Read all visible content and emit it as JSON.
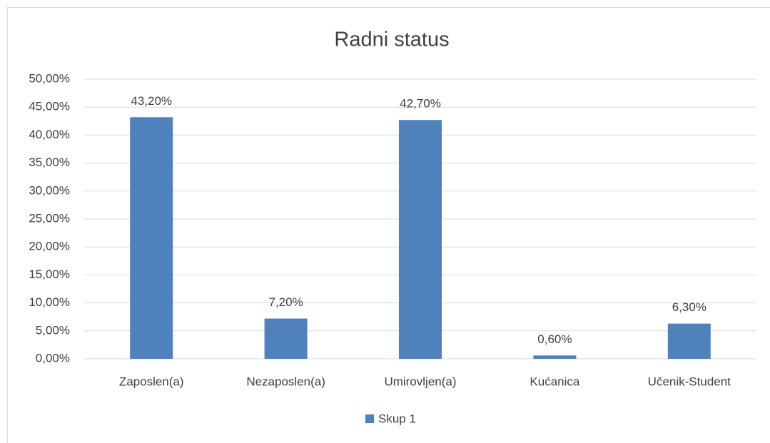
{
  "chart_data": {
    "type": "bar",
    "title": "Radni status",
    "categories": [
      "Zaposlen(a)",
      "Nezaposlen(a)",
      "Umirovljen(a)",
      "Kućanica",
      "Učenik-Student"
    ],
    "series": [
      {
        "name": "Skup 1",
        "color": "#4f81bd",
        "values": [
          43.2,
          7.2,
          42.7,
          0.6,
          6.3
        ],
        "value_labels": [
          "43,20%",
          "7,20%",
          "42,70%",
          "0,60%",
          "6,30%"
        ]
      }
    ],
    "ylim": [
      0,
      50
    ],
    "yticks": [
      {
        "value": 0,
        "label": "0,00%"
      },
      {
        "value": 5,
        "label": "5,00%"
      },
      {
        "value": 10,
        "label": "10,00%"
      },
      {
        "value": 15,
        "label": "15,00%"
      },
      {
        "value": 20,
        "label": "20,00%"
      },
      {
        "value": 25,
        "label": "25,00%"
      },
      {
        "value": 30,
        "label": "30,00%"
      },
      {
        "value": 35,
        "label": "35,00%"
      },
      {
        "value": 40,
        "label": "40,00%"
      },
      {
        "value": 45,
        "label": "45,00%"
      },
      {
        "value": 50,
        "label": "50,00%"
      }
    ],
    "grid": true,
    "legend": "bottom"
  }
}
